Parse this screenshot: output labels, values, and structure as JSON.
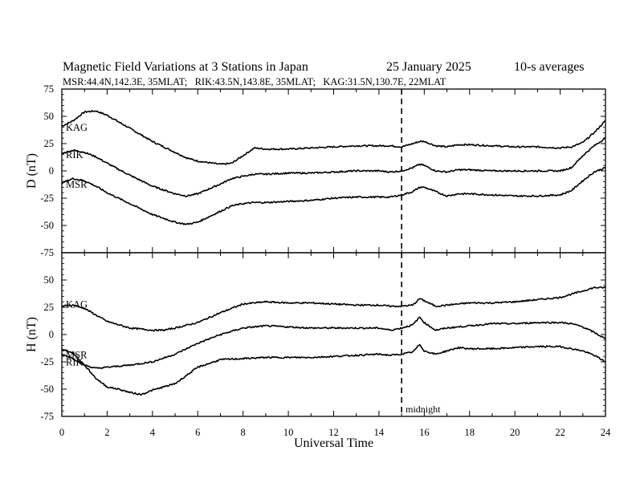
{
  "header": {
    "title": "Magnetic Field Variations at 3 Stations in Japan",
    "date": "25 January 2025",
    "averaging": "10-s averages",
    "stations": "MSR:44.4N,142.3E, 35MLAT;   RIK:43.5N,143.8E, 35MLAT;   KAG:31.5N,130.7E, 22MLAT"
  },
  "chart_data": [
    {
      "type": "line",
      "panel": "D",
      "ylabel": "D (nT)",
      "xlabel": "Universal Time",
      "xlim": [
        0,
        24
      ],
      "ylim": [
        -75,
        75
      ],
      "yticks": [
        75,
        50,
        25,
        0,
        -25,
        -50,
        -75
      ],
      "xticks": [
        0,
        2,
        4,
        6,
        8,
        10,
        12,
        14,
        16,
        18,
        20,
        22,
        24
      ],
      "midline_x": 15,
      "series": [
        {
          "name": "KAG",
          "x": [
            0,
            0.5,
            1,
            1.5,
            2,
            3,
            4,
            5,
            5.5,
            6,
            7,
            7.5,
            8,
            8.5,
            9,
            10,
            11,
            12,
            13,
            14,
            14.5,
            15,
            15.5,
            15.8,
            16,
            16.5,
            17,
            17.5,
            18,
            19,
            20,
            21,
            22,
            22.5,
            23,
            23.5,
            24
          ],
          "y": [
            41,
            46,
            54,
            55,
            51,
            39,
            27,
            17,
            12,
            9,
            6,
            7,
            14,
            21,
            20,
            20,
            21,
            22,
            23,
            23,
            23,
            22,
            25,
            27,
            27,
            23,
            22,
            24,
            24,
            23,
            22,
            22,
            21,
            22,
            26,
            35,
            46
          ]
        },
        {
          "name": "RIK",
          "x": [
            0,
            0.5,
            1,
            1.5,
            2,
            3,
            4,
            5,
            5.5,
            6,
            7,
            7.5,
            8,
            8.5,
            9,
            10,
            11,
            12,
            13,
            14,
            14.5,
            15,
            15.5,
            15.8,
            16,
            16.5,
            17,
            17.5,
            18,
            19,
            20,
            21,
            22,
            22.5,
            23,
            23.5,
            24
          ],
          "y": [
            16,
            19,
            17,
            13,
            7,
            -4,
            -14,
            -21,
            -23,
            -21,
            -12,
            -7,
            -5,
            -3,
            -3,
            -2,
            -2,
            -1,
            0,
            0,
            -1,
            0,
            3,
            6,
            5,
            0,
            -1,
            1,
            1,
            0,
            0,
            0,
            0,
            3,
            14,
            23,
            30
          ]
        },
        {
          "name": "MSR",
          "x": [
            0,
            0.5,
            1,
            1.5,
            2,
            3,
            4,
            5,
            5.5,
            6,
            7,
            7.5,
            8,
            8.5,
            9,
            10,
            11,
            12,
            13,
            14,
            14.5,
            15,
            15.5,
            15.8,
            16,
            16.5,
            17,
            17.5,
            18,
            19,
            20,
            21,
            22,
            22.5,
            23,
            23.5,
            24
          ],
          "y": [
            -11,
            -7,
            -9,
            -14,
            -20,
            -30,
            -40,
            -47,
            -49,
            -47,
            -37,
            -32,
            -30,
            -29,
            -29,
            -28,
            -27,
            -25,
            -24,
            -24,
            -24,
            -22,
            -19,
            -15,
            -15,
            -19,
            -23,
            -21,
            -21,
            -22,
            -23,
            -23,
            -22,
            -18,
            -9,
            -1,
            3
          ]
        }
      ]
    },
    {
      "type": "line",
      "panel": "H",
      "ylabel": "H (nT)",
      "xlabel": "Universal Time",
      "xlim": [
        0,
        24
      ],
      "ylim": [
        -75,
        75
      ],
      "yticks": [
        50,
        25,
        0,
        -25,
        -50,
        -75
      ],
      "xticks": [
        0,
        2,
        4,
        6,
        8,
        10,
        12,
        14,
        16,
        18,
        20,
        22,
        24
      ],
      "midline_x": 15,
      "annotation": "midnight",
      "series": [
        {
          "name": "KAG",
          "x": [
            0,
            0.5,
            1,
            1.5,
            2,
            3,
            4,
            4.5,
            5,
            6,
            7,
            8,
            9,
            10,
            11,
            12,
            13,
            14,
            14.5,
            15,
            15.5,
            15.8,
            16,
            16.5,
            17,
            17.5,
            18,
            19,
            20,
            21,
            22,
            22.5,
            23,
            23.5,
            24
          ],
          "y": [
            26,
            27,
            24,
            18,
            12,
            6,
            4,
            4,
            6,
            11,
            20,
            28,
            30,
            29,
            29,
            28,
            27,
            27,
            26,
            26,
            27,
            33,
            31,
            26,
            27,
            28,
            29,
            29,
            30,
            32,
            34,
            37,
            40,
            43,
            43
          ]
        },
        {
          "name": "RIK",
          "x": [
            0,
            0.5,
            1,
            1.5,
            2,
            3,
            4,
            5,
            6,
            7,
            8,
            9,
            10,
            11,
            12,
            13,
            14,
            14.5,
            15,
            15.5,
            15.8,
            16,
            16.5,
            17,
            17.5,
            18,
            19,
            20,
            21,
            22,
            22.5,
            23,
            23.5,
            24
          ],
          "y": [
            -18,
            -22,
            -28,
            -31,
            -30,
            -28,
            -25,
            -18,
            -8,
            0,
            6,
            8,
            7,
            6,
            6,
            6,
            6,
            4,
            6,
            9,
            16,
            11,
            4,
            6,
            7,
            8,
            10,
            10,
            11,
            11,
            10,
            7,
            2,
            -4
          ]
        },
        {
          "name": "MSR",
          "x": [
            0,
            0.5,
            1,
            1.5,
            2,
            2.5,
            3,
            3.5,
            4,
            5,
            6,
            7,
            8,
            9,
            10,
            11,
            12,
            13,
            14,
            14.5,
            15,
            15.5,
            15.8,
            16,
            16.5,
            17,
            17.5,
            18,
            19,
            20,
            21,
            22,
            22.5,
            23,
            23.5,
            24
          ],
          "y": [
            -13,
            -17,
            -28,
            -40,
            -48,
            -50,
            -53,
            -55,
            -51,
            -45,
            -30,
            -23,
            -22,
            -21,
            -21,
            -21,
            -20,
            -19,
            -18,
            -19,
            -18,
            -16,
            -9,
            -15,
            -18,
            -15,
            -12,
            -13,
            -13,
            -12,
            -11,
            -11,
            -13,
            -15,
            -19,
            -25
          ]
        }
      ]
    }
  ]
}
